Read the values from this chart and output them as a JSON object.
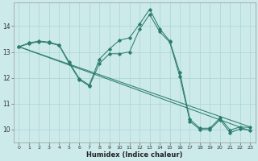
{
  "xlabel": "Humidex (Indice chaleur)",
  "background_color": "#cceaea",
  "line_color": "#2d7d6e",
  "grid_color": "#b0d8d8",
  "xlim": [
    -0.5,
    23.5
  ],
  "ylim": [
    9.5,
    14.9
  ],
  "yticks": [
    10,
    11,
    12,
    13,
    14
  ],
  "xticks": [
    0,
    1,
    2,
    3,
    4,
    5,
    6,
    7,
    8,
    9,
    10,
    11,
    12,
    13,
    14,
    15,
    16,
    17,
    18,
    19,
    20,
    21,
    22,
    23
  ],
  "lines": [
    {
      "x": [
        0,
        1,
        2,
        3,
        4,
        5,
        6,
        7,
        8,
        9,
        10,
        11,
        12,
        13,
        14,
        15,
        16,
        17,
        18,
        19,
        20,
        21,
        22,
        23
      ],
      "y": [
        13.2,
        13.35,
        13.42,
        13.38,
        13.27,
        12.6,
        11.97,
        11.72,
        12.72,
        13.12,
        13.45,
        13.55,
        14.08,
        14.65,
        13.9,
        13.42,
        12.2,
        10.4,
        10.05,
        10.05,
        10.45,
        9.98,
        10.1,
        10.08
      ]
    },
    {
      "x": [
        0,
        4,
        23
      ],
      "y": [
        13.2,
        13.25,
        10.05
      ]
    },
    {
      "x": [
        0,
        4,
        23
      ],
      "y": [
        13.2,
        13.22,
        9.95
      ]
    },
    {
      "x": [
        0,
        1,
        2,
        3,
        4,
        5,
        6,
        7,
        8,
        9,
        10,
        11,
        12,
        13,
        14,
        15,
        16,
        17,
        18,
        19,
        20,
        21,
        22,
        23
      ],
      "y": [
        13.2,
        13.32,
        13.4,
        13.35,
        13.25,
        12.55,
        11.93,
        11.68,
        12.55,
        12.93,
        12.93,
        13.0,
        13.88,
        14.45,
        13.78,
        13.38,
        12.05,
        10.32,
        10.0,
        10.0,
        10.38,
        9.88,
        10.02,
        9.98
      ]
    }
  ]
}
